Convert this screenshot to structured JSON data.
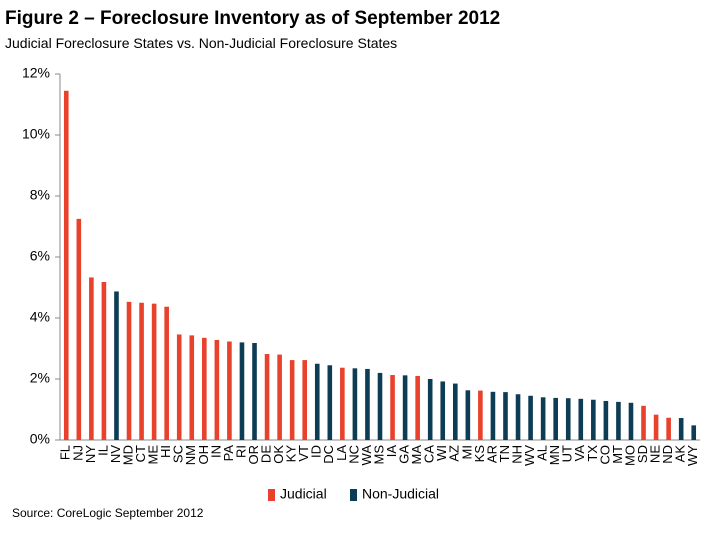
{
  "chart_data": {
    "type": "bar",
    "title": "Figure 2 – Foreclosure Inventory as of September 2012",
    "subtitle": "Judicial Foreclosure States vs. Non-Judicial Foreclosure States",
    "source": "Source: CoreLogic September 2012",
    "categories": [
      "FL",
      "NJ",
      "NY",
      "IL",
      "NV",
      "MD",
      "CT",
      "ME",
      "HI",
      "SC",
      "NM",
      "OH",
      "IN",
      "PA",
      "RI",
      "OR",
      "DE",
      "OK",
      "KY",
      "VT",
      "ID",
      "DC",
      "LA",
      "NC",
      "WA",
      "MS",
      "IA",
      "GA",
      "MA",
      "CA",
      "WI",
      "AZ",
      "MI",
      "KS",
      "AR",
      "TN",
      "NH",
      "WV",
      "AL",
      "MN",
      "UT",
      "VA",
      "TX",
      "CO",
      "MT",
      "MO",
      "SD",
      "NE",
      "ND",
      "AK",
      "WY"
    ],
    "series": [
      {
        "name": "Judicial",
        "color": "#e8412c",
        "values": [
          11.45,
          7.25,
          5.33,
          5.18,
          null,
          4.53,
          4.5,
          4.47,
          4.37,
          3.46,
          3.43,
          3.35,
          3.28,
          3.23,
          null,
          null,
          2.82,
          2.8,
          2.62,
          2.62,
          null,
          null,
          2.37,
          null,
          null,
          null,
          2.13,
          null,
          2.1,
          null,
          null,
          null,
          null,
          1.62,
          null,
          null,
          null,
          null,
          null,
          null,
          null,
          null,
          null,
          null,
          null,
          null,
          1.12,
          0.83,
          0.73,
          null,
          null
        ]
      },
      {
        "name": "Non-Judicial",
        "color": "#0d3c55",
        "values": [
          null,
          null,
          null,
          null,
          4.87,
          null,
          null,
          null,
          null,
          null,
          null,
          null,
          null,
          null,
          3.2,
          3.18,
          null,
          null,
          null,
          null,
          2.5,
          2.45,
          null,
          2.35,
          2.33,
          2.2,
          null,
          2.12,
          null,
          2.0,
          1.92,
          1.85,
          1.63,
          null,
          1.58,
          1.57,
          1.5,
          1.45,
          1.4,
          1.38,
          1.37,
          1.35,
          1.32,
          1.28,
          1.25,
          1.22,
          null,
          null,
          null,
          0.72,
          0.48
        ]
      }
    ],
    "ylim": [
      0,
      12
    ],
    "yticks": [
      {
        "value": 0,
        "label": "0%"
      },
      {
        "value": 2,
        "label": "2%"
      },
      {
        "value": 4,
        "label": "4%"
      },
      {
        "value": 6,
        "label": "6%"
      },
      {
        "value": 8,
        "label": "8%"
      },
      {
        "value": 10,
        "label": "10%"
      },
      {
        "value": 12,
        "label": "12%"
      }
    ],
    "grid": false
  }
}
